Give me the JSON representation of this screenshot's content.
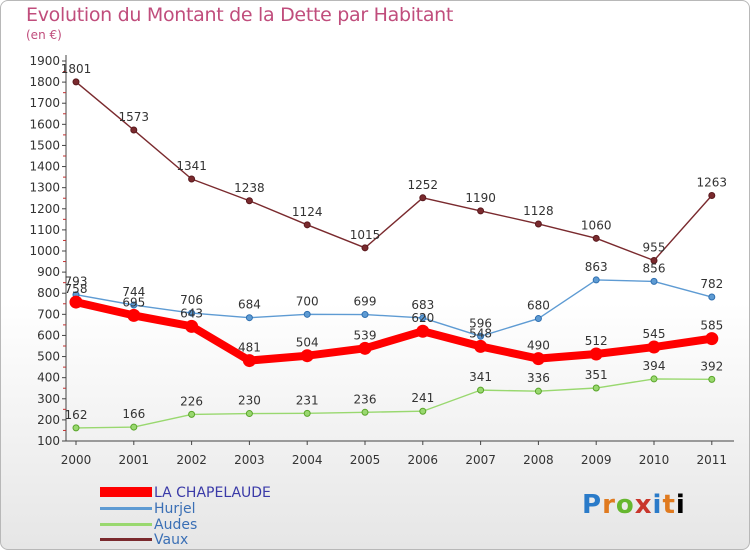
{
  "chart_data": {
    "type": "line",
    "title": "Evolution du Montant de la Dette par Habitant",
    "subtitle": "(en €)",
    "x": [
      "2000",
      "2001",
      "2002",
      "2003",
      "2004",
      "2005",
      "2006",
      "2007",
      "2008",
      "2009",
      "2010",
      "2011"
    ],
    "ylim": [
      100,
      1900
    ],
    "yticks": [
      100,
      200,
      300,
      400,
      500,
      600,
      700,
      800,
      900,
      1000,
      1100,
      1200,
      1300,
      1400,
      1500,
      1600,
      1700,
      1800,
      1900
    ],
    "grid": false,
    "legend_position": "bottom-left",
    "series": [
      {
        "name": "LA CHAPELAUDE",
        "color": "#ff0000",
        "values": [
          758,
          695,
          643,
          481,
          504,
          539,
          620,
          548,
          490,
          512,
          545,
          585
        ]
      },
      {
        "name": "Hurjel",
        "color": "#5e9bd3",
        "values": [
          793,
          744,
          706,
          684,
          700,
          699,
          683,
          596,
          680,
          863,
          856,
          782
        ]
      },
      {
        "name": "Audes",
        "color": "#99d86f",
        "values": [
          162,
          166,
          226,
          230,
          231,
          236,
          241,
          341,
          336,
          351,
          394,
          392
        ]
      },
      {
        "name": "Vaux",
        "color": "#7a2a2e",
        "values": [
          1801,
          1573,
          1341,
          1238,
          1124,
          1015,
          1252,
          1190,
          1128,
          1060,
          955,
          1263
        ]
      }
    ]
  },
  "logo": {
    "letters": [
      "P",
      "r",
      "o",
      "x",
      "i",
      "t",
      "i"
    ]
  }
}
